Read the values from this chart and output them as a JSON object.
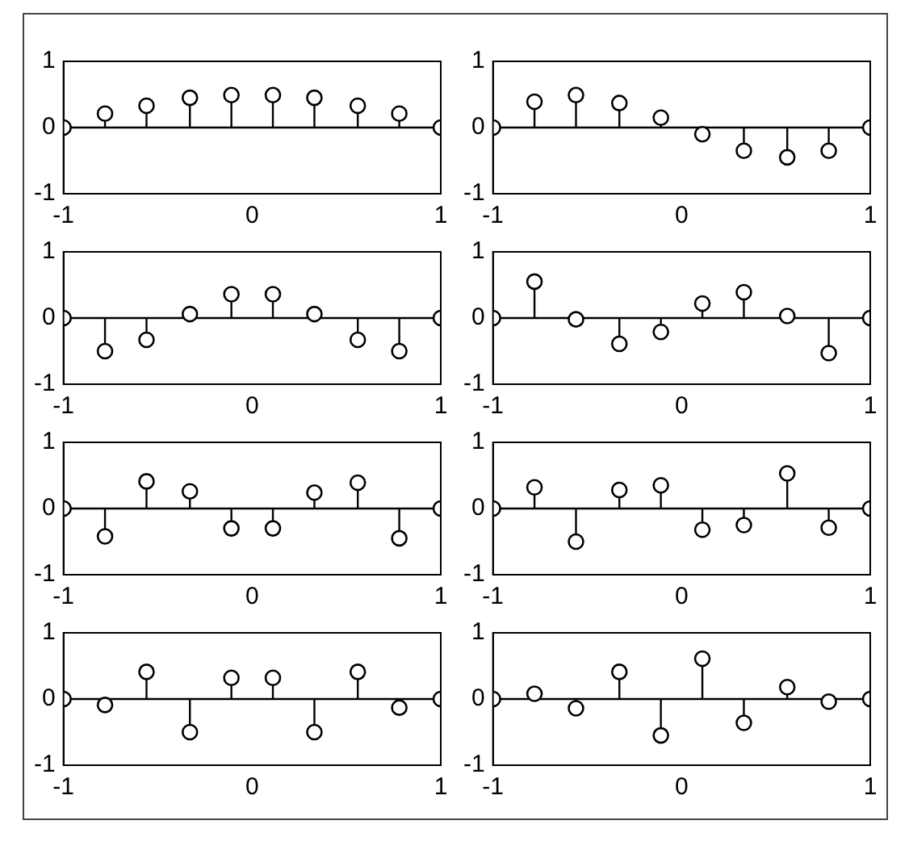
{
  "chart_data": [
    {
      "type": "lollipop",
      "x": [
        -1,
        -0.78,
        -0.56,
        -0.33,
        -0.11,
        0.11,
        0.33,
        0.56,
        0.78,
        1
      ],
      "values": [
        0,
        0.21,
        0.33,
        0.45,
        0.49,
        0.49,
        0.45,
        0.33,
        0.21,
        0
      ],
      "color": "#000000",
      "marker": "circle",
      "xlim": [
        -1,
        1
      ],
      "ylim": [
        -1,
        1
      ],
      "xticks": [
        -1,
        0,
        1
      ],
      "yticks": [
        -1,
        0,
        1
      ]
    },
    {
      "type": "lollipop",
      "x": [
        -1,
        -0.78,
        -0.56,
        -0.33,
        -0.11,
        0.11,
        0.33,
        0.56,
        0.78,
        1
      ],
      "values": [
        0,
        0.39,
        0.49,
        0.37,
        0.15,
        -0.1,
        -0.35,
        -0.45,
        -0.35,
        0
      ],
      "color": "#000000",
      "marker": "circle",
      "xlim": [
        -1,
        1
      ],
      "ylim": [
        -1,
        1
      ],
      "xticks": [
        -1,
        0,
        1
      ],
      "yticks": [
        -1,
        0,
        1
      ]
    },
    {
      "type": "lollipop",
      "x": [
        -1,
        -0.78,
        -0.56,
        -0.33,
        -0.11,
        0.11,
        0.33,
        0.56,
        0.78,
        1
      ],
      "values": [
        0,
        -0.5,
        -0.33,
        0.06,
        0.36,
        0.36,
        0.06,
        -0.33,
        -0.5,
        0
      ],
      "color": "#000000",
      "marker": "circle",
      "xlim": [
        -1,
        1
      ],
      "ylim": [
        -1,
        1
      ],
      "xticks": [
        -1,
        0,
        1
      ],
      "yticks": [
        -1,
        0,
        1
      ]
    },
    {
      "type": "lollipop",
      "x": [
        -1,
        -0.78,
        -0.56,
        -0.33,
        -0.11,
        0.11,
        0.33,
        0.56,
        0.78,
        1
      ],
      "values": [
        0,
        0.55,
        -0.02,
        -0.39,
        -0.21,
        0.22,
        0.39,
        0.03,
        -0.53,
        0
      ],
      "color": "#000000",
      "marker": "circle",
      "xlim": [
        -1,
        1
      ],
      "ylim": [
        -1,
        1
      ],
      "xticks": [
        -1,
        0,
        1
      ],
      "yticks": [
        -1,
        0,
        1
      ]
    },
    {
      "type": "lollipop",
      "x": [
        -1,
        -0.78,
        -0.56,
        -0.33,
        -0.11,
        0.11,
        0.33,
        0.56,
        0.78,
        1
      ],
      "values": [
        0,
        -0.42,
        0.41,
        0.26,
        -0.3,
        -0.3,
        0.24,
        0.39,
        -0.45,
        0
      ],
      "color": "#000000",
      "marker": "circle",
      "xlim": [
        -1,
        1
      ],
      "ylim": [
        -1,
        1
      ],
      "xticks": [
        -1,
        0,
        1
      ],
      "yticks": [
        -1,
        0,
        1
      ]
    },
    {
      "type": "lollipop",
      "x": [
        -1,
        -0.78,
        -0.56,
        -0.33,
        -0.11,
        0.11,
        0.33,
        0.56,
        0.78,
        1
      ],
      "values": [
        0,
        0.32,
        -0.5,
        0.28,
        0.35,
        -0.32,
        -0.25,
        0.53,
        -0.29,
        0
      ],
      "color": "#000000",
      "marker": "circle",
      "xlim": [
        -1,
        1
      ],
      "ylim": [
        -1,
        1
      ],
      "xticks": [
        -1,
        0,
        1
      ],
      "yticks": [
        -1,
        0,
        1
      ]
    },
    {
      "type": "lollipop",
      "x": [
        -1,
        -0.78,
        -0.56,
        -0.33,
        -0.11,
        0.11,
        0.33,
        0.56,
        0.78,
        1
      ],
      "values": [
        0,
        -0.09,
        0.41,
        -0.5,
        0.32,
        0.32,
        -0.5,
        0.41,
        -0.13,
        0
      ],
      "color": "#000000",
      "marker": "circle",
      "xlim": [
        -1,
        1
      ],
      "ylim": [
        -1,
        1
      ],
      "xticks": [
        -1,
        0,
        1
      ],
      "yticks": [
        -1,
        0,
        1
      ]
    },
    {
      "type": "lollipop",
      "x": [
        -1,
        -0.78,
        -0.56,
        -0.33,
        -0.11,
        0.11,
        0.33,
        0.56,
        0.78,
        1
      ],
      "values": [
        0,
        0.08,
        -0.14,
        0.41,
        -0.55,
        0.61,
        -0.36,
        0.18,
        -0.04,
        0
      ],
      "color": "#000000",
      "marker": "circle",
      "xlim": [
        -1,
        1
      ],
      "ylim": [
        -1,
        1
      ],
      "xticks": [
        -1,
        0,
        1
      ],
      "yticks": [
        -1,
        0,
        1
      ]
    }
  ]
}
